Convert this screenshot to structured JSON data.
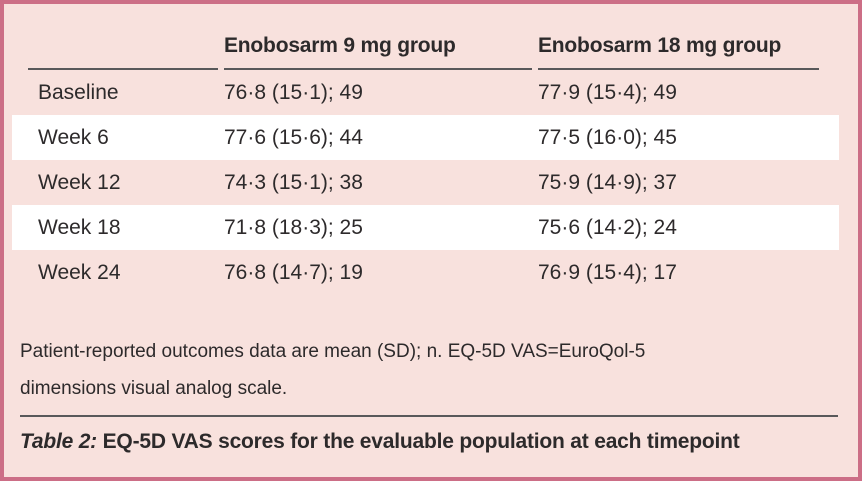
{
  "colors": {
    "background": "#f8e1dd",
    "border": "#cc6e86",
    "row_highlight": "#ffffff",
    "rule": "#59585a",
    "text": "#2d2a2b"
  },
  "table": {
    "header": {
      "col1": "",
      "col2": "Enobosarm 9 mg group",
      "col3": "Enobosarm 18 mg group"
    },
    "rows": [
      {
        "label": "Baseline",
        "values": [
          "76·8 (15·1); 49",
          "77·9 (15·4); 49"
        ]
      },
      {
        "label": "Week 6",
        "values": [
          "77·6 (15·6); 44",
          "77·5 (16·0); 45"
        ]
      },
      {
        "label": "Week 12",
        "values": [
          "74·3 (15·1); 38",
          "75·9 (14·9); 37"
        ]
      },
      {
        "label": "Week 18",
        "values": [
          "71·8 (18·3); 25",
          "75·6 (14·2); 24"
        ]
      },
      {
        "label": "Week 24",
        "values": [
          "76·8 (14·7); 19",
          "76·9 (15·4); 17"
        ]
      }
    ],
    "footnote": "Patient-reported outcomes data are mean (SD); n. EQ-5D VAS=EuroQol-5 dimensions visual analog scale.",
    "caption": {
      "label": "Table 2:",
      "text": "EQ-5D VAS scores for the evaluable population at each timepoint"
    }
  }
}
